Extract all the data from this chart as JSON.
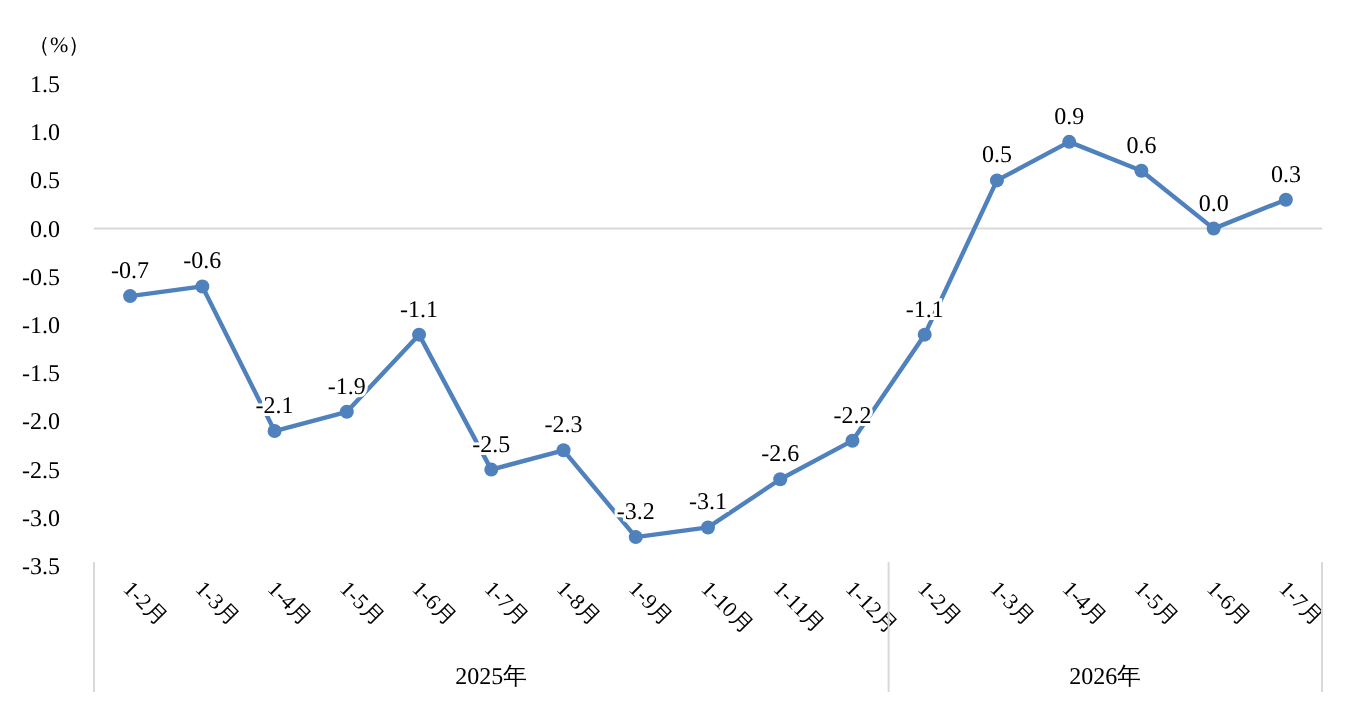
{
  "chart_data": {
    "type": "line",
    "ylabel": "（%）",
    "categories": [
      "1-2月",
      "1-3月",
      "1-4月",
      "1-5月",
      "1-6月",
      "1-7月",
      "1-8月",
      "1-9月",
      "1-10月",
      "1-11月",
      "1-12月",
      "1-2月",
      "1-3月",
      "1-4月",
      "1-5月",
      "1-6月",
      "1-7月"
    ],
    "series": [
      {
        "color": "#4f81bd",
        "values": [
          -0.7,
          -0.6,
          -2.1,
          -1.9,
          -1.1,
          -2.5,
          -2.3,
          -3.2,
          -3.1,
          -2.6,
          -2.2,
          -1.1,
          0.5,
          0.9,
          0.6,
          0.0,
          0.3
        ],
        "value_labels": [
          "-0.7",
          "-0.6",
          "-2.1",
          "-1.9",
          "-1.1",
          "-2.5",
          "-2.3",
          "-3.2",
          "-3.1",
          "-2.6",
          "-2.2",
          "-1.1",
          "0.5",
          "0.9",
          "0.6",
          "0.0",
          "0.3"
        ]
      }
    ],
    "ylim": [
      -3.5,
      1.5
    ],
    "yticks": [
      {
        "value": 1.5,
        "label": "1.5"
      },
      {
        "value": 1,
        "label": "1.0"
      },
      {
        "value": 0.5,
        "label": "0.5"
      },
      {
        "value": 0,
        "label": "0.0"
      },
      {
        "value": -0.5,
        "label": "-0.5"
      },
      {
        "value": -1,
        "label": "-1.0"
      },
      {
        "value": -1.5,
        "label": "-1.5"
      },
      {
        "value": -2,
        "label": "-2.0"
      },
      {
        "value": -2.5,
        "label": "-2.5"
      },
      {
        "value": -3,
        "label": "-3.0"
      },
      {
        "value": -3.5,
        "label": "-3.5"
      }
    ],
    "annotations": [
      "2025年",
      "2026年"
    ],
    "ref_lines": [
      {
        "axis": "y",
        "value": 0,
        "color": "#d9d9d9"
      }
    ],
    "marker": "circle",
    "line_style": "solid",
    "grid": false
  }
}
